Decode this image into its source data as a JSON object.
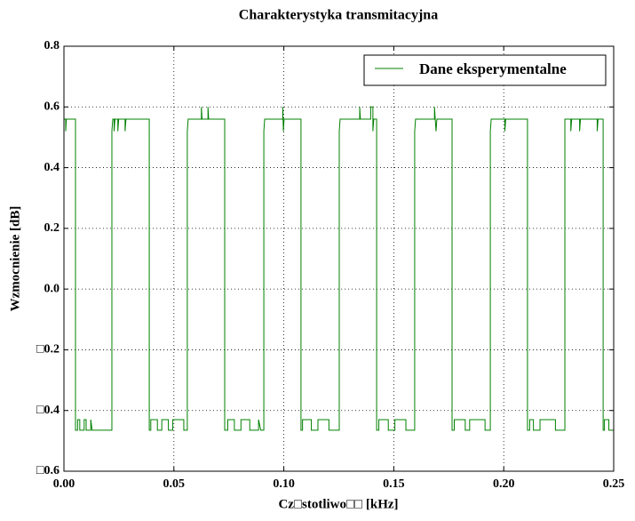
{
  "chart_data": {
    "type": "line",
    "title": "Charakterystyka transmitacyjna",
    "xlabel": "Cz□stotliwo□□ [kHz]",
    "ylabel": "Wzmocnienie [dB]",
    "xlim": [
      0,
      0.25
    ],
    "ylim": [
      -0.6,
      0.8
    ],
    "xticks": [
      {
        "value": 0,
        "label": "0.00"
      },
      {
        "value": 0.05,
        "label": "0.05"
      },
      {
        "value": 0.1,
        "label": "0.10"
      },
      {
        "value": 0.15,
        "label": "0.15"
      },
      {
        "value": 0.2,
        "label": "0.20"
      },
      {
        "value": 0.25,
        "label": "0.25"
      }
    ],
    "yticks": [
      {
        "value": -0.6,
        "label": "□0.6"
      },
      {
        "value": -0.4,
        "label": "□0.4"
      },
      {
        "value": -0.2,
        "label": "□0.2"
      },
      {
        "value": 0,
        "label": "0.0"
      },
      0.2,
      0.4,
      0.6,
      0.8
    ],
    "grid": true,
    "legend": "upper right",
    "x": [
      0,
      0.0008,
      0.0008,
      0.0011,
      0.00525,
      0.00525,
      0.0062,
      0.0062,
      0.0072,
      0.0072,
      0.0092,
      0.0092,
      0.0101,
      0.0101,
      0.0122,
      0.0122,
      0.0128,
      0.0218,
      0.0218,
      0.0222,
      0.0228,
      0.0228,
      0.0232,
      0.0245,
      0.0245,
      0.0249,
      0.0278,
      0.0278,
      0.0282,
      0.0388,
      0.0388,
      0.0395,
      0.0395,
      0.0425,
      0.0425,
      0.0445,
      0.0445,
      0.0475,
      0.0475,
      0.0495,
      0.0495,
      0.0545,
      0.0545,
      0.0561,
      0.0561,
      0.0565,
      0.0625,
      0.0625,
      0.0628,
      0.0655,
      0.0655,
      0.0658,
      0.0731,
      0.0731,
      0.0745,
      0.0745,
      0.0775,
      0.0775,
      0.0805,
      0.0805,
      0.0845,
      0.0845,
      0.0885,
      0.0885,
      0.0895,
      0.0909,
      0.0909,
      0.0913,
      0.0995,
      0.0995,
      0.0998,
      0.1001,
      0.1078,
      0.1078,
      0.1085,
      0.1085,
      0.1125,
      0.1125,
      0.1155,
      0.1155,
      0.1205,
      0.1205,
      0.1252,
      0.1252,
      0.1256,
      0.1345,
      0.1345,
      0.1348,
      0.1395,
      0.1395,
      0.1405,
      0.1405,
      0.1409,
      0.1422,
      0.1422,
      0.1432,
      0.1432,
      0.1475,
      0.1475,
      0.1505,
      0.1505,
      0.1555,
      0.1555,
      0.1595,
      0.1595,
      0.1599,
      0.1685,
      0.1685,
      0.1692,
      0.1696,
      0.1765,
      0.1765,
      0.1775,
      0.1775,
      0.1825,
      0.1825,
      0.1845,
      0.1845,
      0.1915,
      0.1915,
      0.1939,
      0.1939,
      0.1943,
      0.2005,
      0.2005,
      0.2009,
      0.2108,
      0.2108,
      0.2118,
      0.2118,
      0.2135,
      0.2135,
      0.2165,
      0.2165,
      0.2235,
      0.2235,
      0.2278,
      0.2278,
      0.2305,
      0.2305,
      0.2309,
      0.2345,
      0.2345,
      0.2349,
      0.2425,
      0.2425,
      0.2429,
      0.2452,
      0.2452,
      0.2458,
      0.2458,
      0.2478,
      0.2478,
      0.25
    ],
    "series": [
      {
        "name": "Dane eksperymentalne",
        "color": "#008000",
        "values": [
          0.56,
          0.56,
          0.52,
          0.56,
          0.56,
          -0.465,
          -0.465,
          -0.43,
          -0.43,
          -0.465,
          -0.465,
          -0.43,
          -0.43,
          -0.465,
          -0.465,
          -0.43,
          -0.465,
          -0.465,
          0.52,
          0.56,
          0.56,
          0.52,
          0.56,
          0.56,
          0.52,
          0.56,
          0.56,
          0.52,
          0.56,
          0.56,
          -0.465,
          -0.465,
          -0.43,
          -0.43,
          -0.465,
          -0.465,
          -0.43,
          -0.43,
          -0.465,
          -0.465,
          -0.43,
          -0.43,
          -0.465,
          -0.465,
          0.52,
          0.56,
          0.56,
          0.6,
          0.56,
          0.56,
          0.6,
          0.56,
          0.56,
          -0.465,
          -0.465,
          -0.43,
          -0.43,
          -0.465,
          -0.465,
          -0.43,
          -0.43,
          -0.465,
          -0.465,
          -0.43,
          -0.465,
          -0.465,
          0.52,
          0.56,
          0.56,
          0.6,
          0.52,
          0.56,
          0.56,
          -0.465,
          -0.465,
          -0.43,
          -0.43,
          -0.465,
          -0.465,
          -0.43,
          -0.43,
          -0.465,
          -0.465,
          0.52,
          0.56,
          0.56,
          0.6,
          0.56,
          0.56,
          0.6,
          0.6,
          0.52,
          0.56,
          0.56,
          -0.465,
          -0.465,
          -0.43,
          -0.43,
          -0.465,
          -0.465,
          -0.43,
          -0.43,
          -0.465,
          -0.465,
          0.52,
          0.56,
          0.56,
          0.6,
          0.52,
          0.56,
          0.56,
          -0.465,
          -0.465,
          -0.43,
          -0.43,
          -0.465,
          -0.465,
          -0.43,
          -0.43,
          -0.465,
          -0.465,
          0.52,
          0.56,
          0.56,
          0.52,
          0.56,
          0.56,
          -0.465,
          -0.465,
          -0.43,
          -0.43,
          -0.465,
          -0.465,
          -0.43,
          -0.43,
          -0.465,
          -0.465,
          0.56,
          0.56,
          0.52,
          0.56,
          0.56,
          0.52,
          0.56,
          0.56,
          0.52,
          0.56,
          0.56,
          -0.465,
          -0.465,
          -0.43,
          -0.43,
          -0.465,
          -0.465
        ]
      }
    ]
  }
}
